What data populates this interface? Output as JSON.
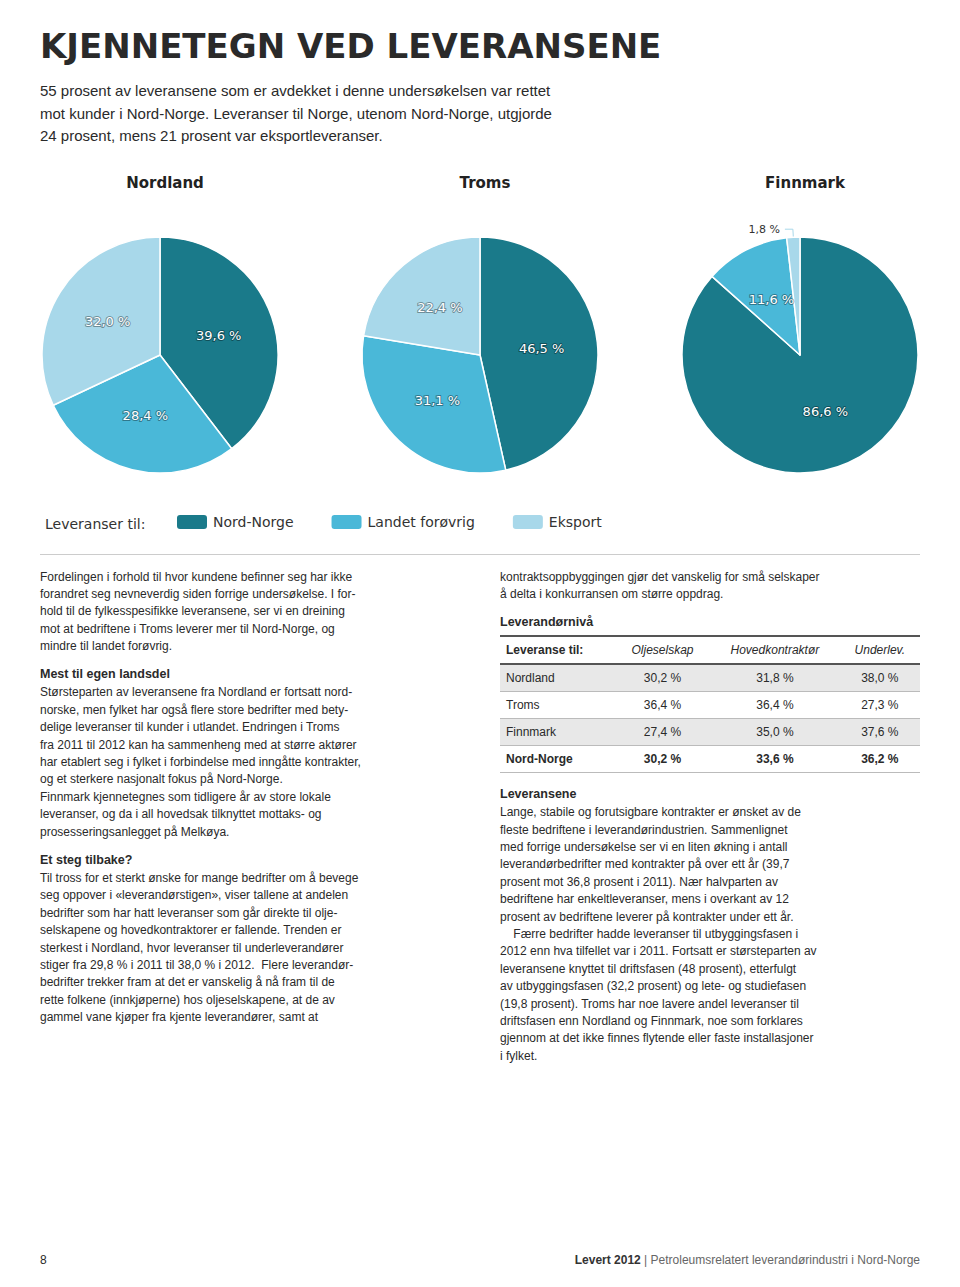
{
  "title": "KJENNETEGN VED LEVERANSENE",
  "subtitle": "55 prosent av leveransene som er avdekket i denne undersøkelsen var rettet\nmot kunder i Nord-Norge. Leveranser til Norge, utenom Nord-Norge, utgjorde\n24 prosent, mens 21 prosent var eksportleveranser.",
  "legend": "bottom",
  "legend_title": "Leveranser til:",
  "chart_data": [
    {
      "type": "pie",
      "title": "Nordland",
      "categories": [
        "Nord-Norge",
        "Landet forøvrig",
        "Eksport"
      ],
      "values": [
        39.6,
        28.4,
        32.0
      ],
      "value_labels": [
        "39,6 %",
        "28,4 %",
        "32,0 %"
      ],
      "colors": [
        "#1a7a8a",
        "#4ab8d8",
        "#a8d8ea"
      ],
      "data_labels": true
    },
    {
      "type": "pie",
      "title": "Troms",
      "categories": [
        "Nord-Norge",
        "Landet forøvrig",
        "Eksport"
      ],
      "values": [
        46.5,
        31.1,
        22.4
      ],
      "value_labels": [
        "46,5 %",
        "31,1 %",
        "22,4 %"
      ],
      "colors": [
        "#1a7a8a",
        "#4ab8d8",
        "#a8d8ea"
      ],
      "data_labels": true
    },
    {
      "type": "pie",
      "title": "Finnmark",
      "categories": [
        "Nord-Norge",
        "Landet forøvrig",
        "Eksport"
      ],
      "values": [
        86.6,
        11.6,
        1.8
      ],
      "value_labels": [
        "86,6 %",
        "11,6 %",
        "1,8 %"
      ],
      "colors": [
        "#1a7a8a",
        "#4ab8d8",
        "#a8d8ea"
      ],
      "data_labels": true
    },
    {
      "type": "table",
      "title": "Leverandørnivå",
      "header": [
        "Leveranse til:",
        "Oljeselskap",
        "Hovedkontraktør",
        "Underlev."
      ],
      "rows": [
        [
          "Nordland",
          "30,2 %",
          "31,8 %",
          "38,0 %"
        ],
        [
          "Troms",
          "36,4 %",
          "36,4 %",
          "27,3 %"
        ],
        [
          "Finnmark",
          "27,4 %",
          "35,0 %",
          "37,6 %"
        ],
        [
          "Nord-Norge",
          "30,2 %",
          "33,6 %",
          "36,2 %"
        ]
      ]
    }
  ],
  "annotations": [
    {
      "text": "Fordelingen i forhold til hvor kundene befinner seg har ikke\nforandret seg nevneverdig siden forrige undersøkelse. I for-\nhold til de fylkesspesifikke leveransene, ser vi en dreining\nmot at bedriftene i Troms leverer mer til Nord-Norge, og\nmindre til landet forøvrig."
    },
    {
      "heading": "Mest til egen landsdel",
      "text": "Størsteparten av leveransene fra Nordland er fortsatt nord-\nnorske, men fylket har også flere store bedrifter med bety-\ndelige leveranser til kunder i utlandet. Endringen i Troms\nfra 2011 til 2012 kan ha sammenheng med at større aktører\nhar etablert seg i fylket i forbindelse med inngåtte kontrakter,\nog et sterkere nasjonalt fokus på Nord-Norge.\nFinnmark kjennetegnes som tidligere år av store lokale\nleveranser, og da i all hovedsak tilknyttet mottaks- og\nprosesseringsanlegget på Melkøya."
    },
    {
      "heading": "Et steg tilbake?",
      "text": "Til tross for et sterkt ønske for mange bedrifter om å bevege\nseg oppover i «leverandørstigen», viser tallene at andelen\nbedrifter som har hatt leveranser som går direkte til olje-\nselskapene og hovedkontraktorer er fallende. Trenden er\nsterkest i Nordland, hvor leveranser til underleverandører\nstiger fra 29,8 % i 2011 til 38,0 % i 2012.  Flere leverandør-\nbedrifter trekker fram at det er vanskelig å nå fram til de\nrette folkene (innkjøperne) hos oljeselskapene, at de av\ngammel vane kjøper fra kjente leverandører, samt at"
    },
    {
      "text": "kontraktsoppbyggingen gjør det vanskelig for små selskaper\nå delta i konkurransen om større oppdrag."
    },
    {
      "heading": "Leveransene",
      "text": "Lange, stabile og forutsigbare kontrakter er ønsket av de\nfleste bedriftene i leverandørindustrien. Sammenlignet\nmed forrige undersøkelse ser vi en liten økning i antall\nleverandørbedrifter med kontrakter på over ett år (39,7\nprosent mot 36,8 prosent i 2011). Nær halvparten av\nbedriftene har enkeltleveranser, mens i overkant av 12\nprosent av bedriftene leverer på kontrakter under ett år.\n    Færre bedrifter hadde leveranser til utbyggingsfasen i\n2012 enn hva tilfellet var i 2011. Fortsatt er størsteparten av\nleveransene knyttet til driftsfasen (48 prosent), etterfulgt\nav utbyggingsfasen (32,2 prosent) og lete- og studiefasen\n(19,8 prosent). Troms har noe lavere andel leveranser til\ndriftsfasen enn Nordland og Finnmark, noe som forklares\ngjennom at det ikke finnes flytende eller faste installasjoner\ni fylket."
    }
  ],
  "footer": {
    "page": "8",
    "bold": "Levert 2012",
    "separator": " | ",
    "text": "Petroleumsrelatert leverandørindustri i Nord-Norge"
  }
}
